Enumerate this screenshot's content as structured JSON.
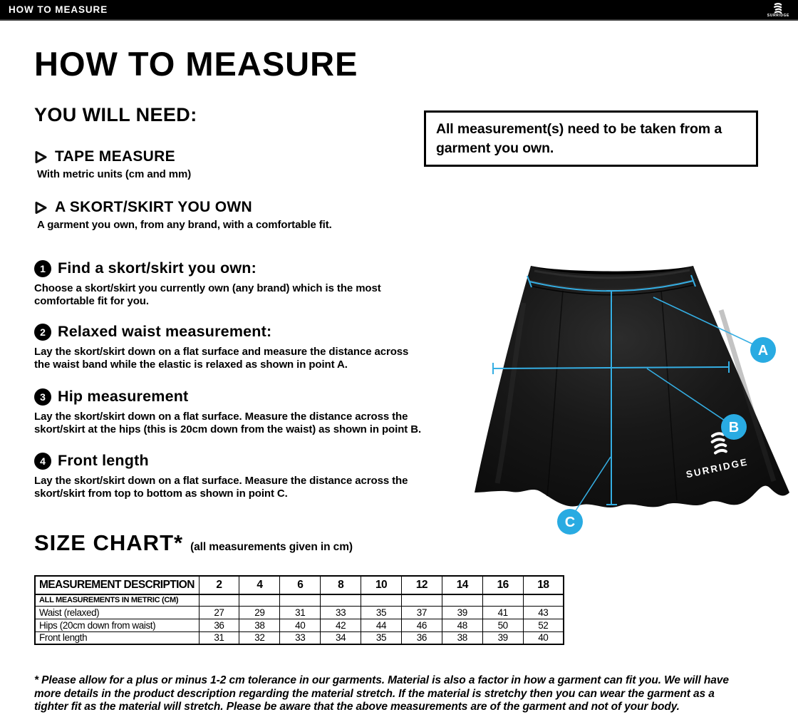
{
  "topbar": {
    "title": "HOW TO MEASURE",
    "brand": "SURRIDGE"
  },
  "page": {
    "title": "HOW TO MEASURE"
  },
  "you_will_need": {
    "heading": "YOU WILL NEED:",
    "items": [
      {
        "title": "TAPE MEASURE",
        "description": [
          "With metric units (cm and mm)"
        ]
      },
      {
        "title": "A SKORT/SKIRT YOU OWN",
        "description": [
          "A garment you own, from any brand, with a comfortable fit."
        ]
      }
    ]
  },
  "note_box": {
    "text": [
      "All measurement(s) need to be taken from a",
      "garment you own."
    ]
  },
  "steps": [
    {
      "number": "1",
      "title": "Find a skort/skirt you own:",
      "description": [
        "Choose a skort/skirt you currently own (any brand) which is the most",
        "comfortable fit for you."
      ]
    },
    {
      "number": "2",
      "title": "Relaxed waist measurement:",
      "description": [
        "Lay the skort/skirt down on a flat surface and measure the distance across",
        "the waist band while the elastic is relaxed as shown in point A."
      ]
    },
    {
      "number": "3",
      "title": "Hip measurement",
      "description": [
        "Lay the skort/skirt down on a flat surface. Measure the distance across the",
        "skort/skirt at the hips (this is 20cm down from the waist) as shown in point B."
      ]
    },
    {
      "number": "4",
      "title": "Front length",
      "description": [
        "Lay the skort/skirt down on a flat surface. Measure the distance across the",
        "skort/skirt from top to bottom as shown in point C."
      ]
    }
  ],
  "diagram": {
    "garment": "black skort/skirt",
    "labels": [
      "A",
      "B",
      "C"
    ],
    "brand": "SURRIDGE",
    "accent_color": "#29ABE2"
  },
  "size_chart": {
    "heading": "SIZE CHART*",
    "subheading": "(all measurements given in cm)",
    "table": {
      "header": [
        "MEASUREMENT DESCRIPTION",
        "2",
        "4",
        "6",
        "8",
        "10",
        "12",
        "14",
        "16",
        "18"
      ],
      "metric_row_label": "ALL MEASUREMENTS IN METRIC (CM)",
      "rows": [
        {
          "label": "Waist (relaxed)",
          "values": [
            "27",
            "29",
            "31",
            "33",
            "35",
            "37",
            "39",
            "41",
            "43"
          ]
        },
        {
          "label": "Hips (20cm down from waist)",
          "values": [
            "36",
            "38",
            "40",
            "42",
            "44",
            "46",
            "48",
            "50",
            "52"
          ]
        },
        {
          "label": "Front length",
          "values": [
            "31",
            "32",
            "33",
            "34",
            "35",
            "36",
            "38",
            "39",
            "40"
          ]
        }
      ]
    }
  },
  "footnote": [
    "* Please allow for a plus or minus 1-2 cm tolerance in our garments. Material is also a factor in how a garment can fit you. We will have",
    "more details in the product description regarding the material stretch.  If the material is stretchy then you can wear the garment as a",
    "tighter fit as the material will stretch.  Please be aware that the above measurements are of the garment and not of your body."
  ]
}
